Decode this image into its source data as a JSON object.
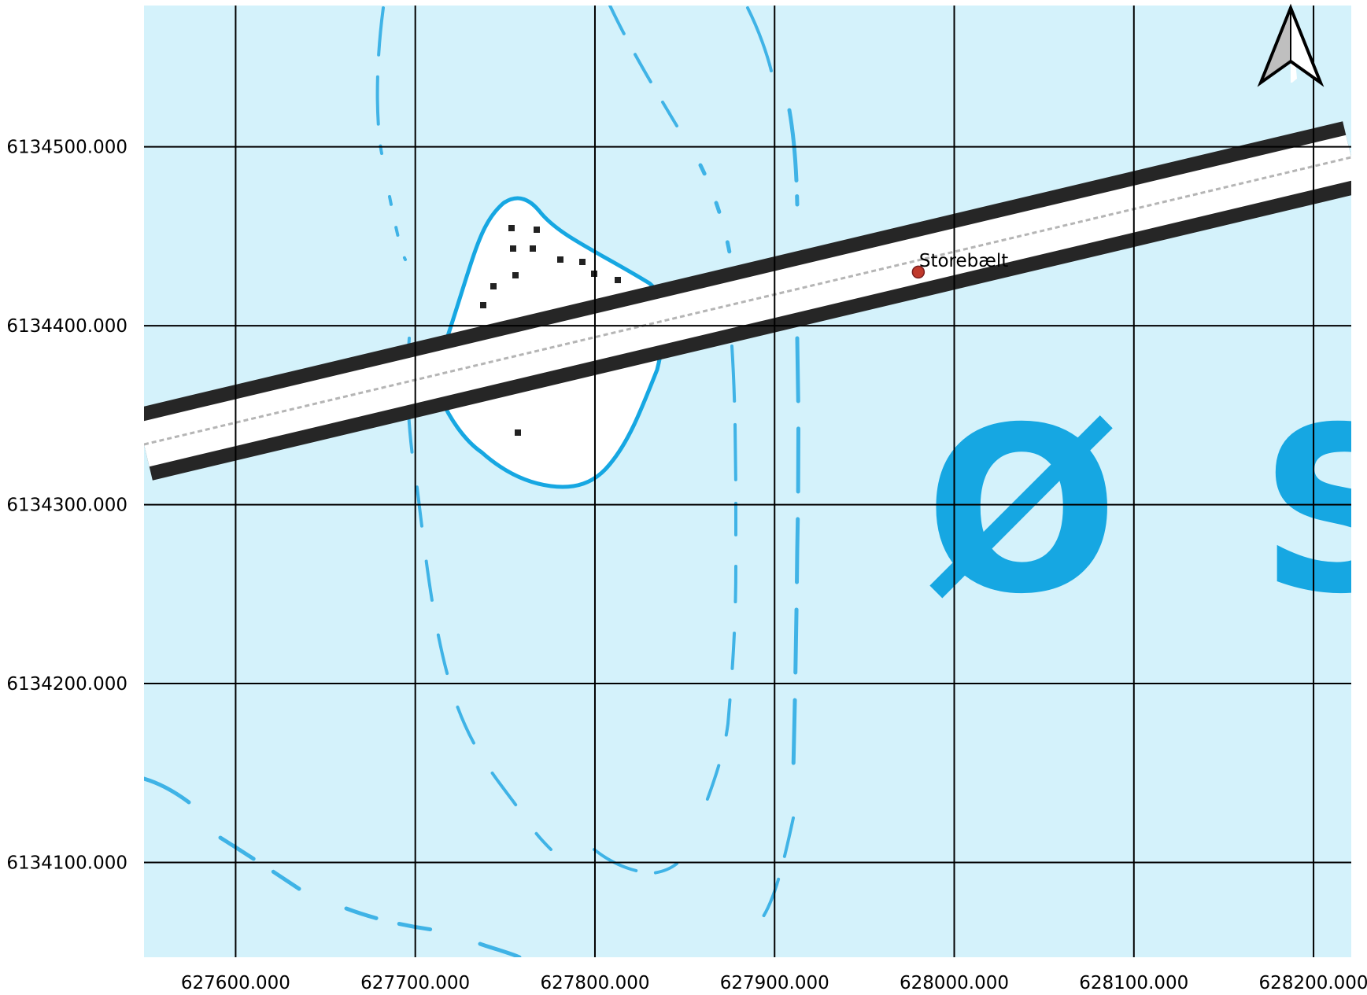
{
  "map": {
    "place": {
      "label": "Storebælt",
      "x": 627980,
      "y": 6134430,
      "marker_color": "#c0392b"
    },
    "x_ticks": [
      627600,
      627700,
      627800,
      627900,
      628000,
      628100,
      628200
    ],
    "y_ticks": [
      6134500,
      6134400,
      6134300,
      6134200,
      6134100
    ],
    "x_tick_labels": [
      "627600.000",
      "627700.000",
      "627800.000",
      "627900.000",
      "628000.000",
      "628100.000",
      "628200.000"
    ],
    "y_tick_labels": [
      "6134500.000",
      "6134400.000",
      "6134300.000",
      "6134200.000",
      "6134100.000"
    ],
    "x_range": [
      627549,
      628221
    ],
    "y_range": [
      6134047,
      6134579
    ],
    "grid": true,
    "north_arrow": "north-arrow-icon",
    "sea_label_glyphs": [
      "Ø",
      "S"
    ],
    "colors": {
      "water": "#d4f2fb",
      "shoreline": "#16a7e2",
      "depth_contour": "#3fb3e6",
      "bridge_outline": "#262626",
      "bridge_deck": "#ffffff",
      "island_fill": "#ffffff",
      "grid": "#000000"
    }
  }
}
